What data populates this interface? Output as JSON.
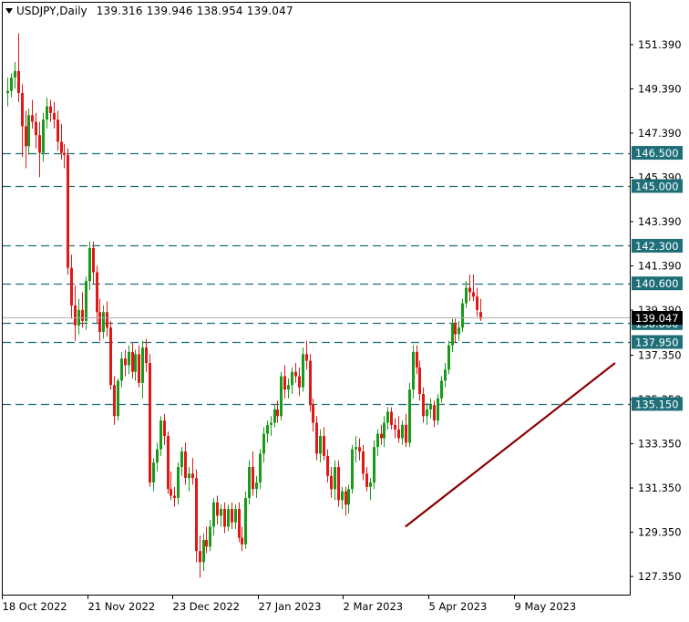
{
  "header": {
    "symbol": "USDJPY,Daily",
    "ohlc": "139.316 139.946 138.954 139.047",
    "menu_icon": "triangle-down-icon"
  },
  "chart_data": {
    "type": "candlestick",
    "title": "USDJPY,Daily",
    "ylim": [
      126.2,
      152.5
    ],
    "y_ticks": [
      "151.390",
      "149.390",
      "147.390",
      "145.390",
      "143.390",
      "141.390",
      "139.390",
      "137.350",
      "135.350",
      "133.350",
      "131.350",
      "129.350",
      "127.350"
    ],
    "x_ticks": [
      {
        "label": "18 Oct 2022",
        "index": 0
      },
      {
        "label": "21 Nov 2022",
        "index": 24
      },
      {
        "label": "23 Dec 2022",
        "index": 48
      },
      {
        "label": "27 Jan 2023",
        "index": 72
      },
      {
        "label": "2 Mar 2023",
        "index": 96
      },
      {
        "label": "5 Apr 2023",
        "index": 120
      },
      {
        "label": "9 May 2023",
        "index": 144
      }
    ],
    "current_price": "139.047",
    "levels": [
      {
        "price": 146.5,
        "label": "146.500"
      },
      {
        "price": 145.0,
        "label": "145.000"
      },
      {
        "price": 142.3,
        "label": "142.300"
      },
      {
        "price": 140.6,
        "label": "140.600"
      },
      {
        "price": 138.8,
        "label": "138.800"
      },
      {
        "price": 137.95,
        "label": "137.950"
      },
      {
        "price": 135.15,
        "label": "135.150"
      }
    ],
    "trendline": {
      "from": {
        "index": 112,
        "price": 129.6
      },
      "to": {
        "index": 171,
        "price": 137.0
      }
    },
    "colors": {
      "up": "#1a9a1a",
      "down": "#e01818",
      "level": "#1f6f78",
      "level_label_bg": "#1f6f78",
      "trend": "#8b0000",
      "grid": "#000000"
    },
    "candles": [
      [
        149.2,
        149.9,
        148.6,
        149.3
      ],
      [
        149.3,
        150.1,
        149.0,
        149.9
      ],
      [
        149.9,
        150.6,
        149.4,
        150.2
      ],
      [
        150.2,
        151.9,
        148.8,
        149.2
      ],
      [
        149.2,
        149.6,
        146.3,
        147.7
      ],
      [
        147.7,
        148.4,
        145.8,
        146.8
      ],
      [
        146.8,
        148.5,
        146.4,
        148.2
      ],
      [
        148.2,
        148.9,
        147.6,
        147.9
      ],
      [
        147.9,
        148.3,
        146.7,
        147.3
      ],
      [
        147.3,
        147.9,
        145.4,
        146.5
      ],
      [
        146.5,
        148.3,
        146.1,
        148.0
      ],
      [
        148.0,
        149.0,
        147.6,
        148.6
      ],
      [
        148.6,
        148.9,
        147.9,
        148.3
      ],
      [
        148.3,
        148.8,
        147.6,
        148.0
      ],
      [
        148.0,
        148.4,
        146.6,
        147.0
      ],
      [
        147.0,
        147.8,
        146.2,
        146.5
      ],
      [
        146.5,
        146.9,
        145.8,
        146.4
      ],
      [
        146.4,
        146.7,
        141.0,
        141.3
      ],
      [
        141.3,
        141.9,
        139.0,
        139.6
      ],
      [
        139.6,
        140.5,
        138.0,
        138.7
      ],
      [
        138.7,
        139.9,
        138.3,
        139.4
      ],
      [
        139.4,
        140.2,
        138.6,
        138.9
      ],
      [
        138.9,
        140.9,
        138.5,
        140.7
      ],
      [
        140.7,
        142.5,
        140.3,
        142.2
      ],
      [
        142.2,
        142.5,
        140.6,
        141.1
      ],
      [
        141.1,
        141.4,
        138.8,
        139.3
      ],
      [
        139.3,
        139.9,
        138.0,
        138.4
      ],
      [
        138.4,
        139.6,
        138.1,
        139.3
      ],
      [
        139.3,
        139.8,
        138.2,
        138.6
      ],
      [
        138.6,
        138.9,
        135.8,
        136.0
      ],
      [
        136.0,
        136.4,
        134.2,
        134.6
      ],
      [
        134.6,
        136.3,
        134.4,
        136.2
      ],
      [
        136.2,
        137.5,
        135.9,
        137.2
      ],
      [
        137.2,
        137.6,
        136.4,
        136.9
      ],
      [
        136.9,
        137.8,
        136.5,
        137.5
      ],
      [
        137.5,
        137.9,
        136.3,
        136.6
      ],
      [
        136.6,
        137.6,
        136.2,
        137.4
      ],
      [
        137.4,
        137.8,
        135.9,
        136.1
      ],
      [
        136.1,
        138.0,
        135.4,
        137.7
      ],
      [
        137.7,
        138.1,
        136.6,
        137.0
      ],
      [
        137.0,
        137.4,
        131.4,
        131.6
      ],
      [
        131.6,
        132.7,
        131.2,
        132.5
      ],
      [
        132.5,
        133.4,
        132.1,
        133.1
      ],
      [
        133.1,
        134.6,
        132.8,
        134.4
      ],
      [
        134.4,
        134.7,
        133.3,
        133.7
      ],
      [
        133.7,
        133.9,
        131.1,
        131.3
      ],
      [
        131.3,
        132.1,
        130.8,
        131.0
      ],
      [
        131.0,
        131.4,
        130.5,
        130.9
      ],
      [
        130.9,
        132.5,
        130.6,
        132.3
      ],
      [
        132.3,
        133.2,
        131.9,
        133.0
      ],
      [
        133.0,
        133.4,
        131.5,
        131.8
      ],
      [
        131.8,
        132.3,
        131.2,
        132.0
      ],
      [
        132.0,
        132.7,
        131.5,
        131.8
      ],
      [
        131.8,
        132.2,
        128.0,
        128.5
      ],
      [
        128.5,
        129.2,
        127.3,
        128.0
      ],
      [
        128.0,
        129.3,
        127.6,
        129.0
      ],
      [
        129.0,
        129.6,
        128.4,
        128.7
      ],
      [
        128.7,
        129.9,
        128.5,
        129.6
      ],
      [
        129.6,
        130.9,
        129.2,
        130.7
      ],
      [
        130.7,
        131.0,
        129.7,
        130.1
      ],
      [
        130.1,
        130.6,
        129.6,
        130.4
      ],
      [
        130.4,
        130.7,
        129.3,
        129.6
      ],
      [
        129.6,
        130.6,
        129.4,
        130.4
      ],
      [
        130.4,
        130.7,
        129.5,
        129.8
      ],
      [
        129.8,
        130.6,
        129.5,
        130.4
      ],
      [
        130.4,
        130.7,
        128.9,
        129.1
      ],
      [
        129.1,
        129.6,
        128.5,
        128.8
      ],
      [
        128.8,
        131.2,
        128.6,
        130.9
      ],
      [
        130.9,
        132.6,
        130.6,
        132.3
      ],
      [
        132.3,
        133.0,
        131.0,
        131.3
      ],
      [
        131.3,
        131.9,
        130.9,
        131.6
      ],
      [
        131.6,
        133.1,
        131.3,
        132.9
      ],
      [
        132.9,
        134.1,
        132.5,
        133.8
      ],
      [
        133.8,
        134.4,
        133.4,
        134.2
      ],
      [
        134.2,
        134.6,
        133.7,
        134.3
      ],
      [
        134.3,
        135.1,
        134.1,
        134.9
      ],
      [
        134.9,
        135.3,
        134.3,
        134.6
      ],
      [
        134.6,
        136.6,
        134.4,
        136.4
      ],
      [
        136.4,
        136.9,
        135.4,
        135.8
      ],
      [
        135.8,
        136.3,
        135.4,
        136.0
      ],
      [
        136.0,
        136.8,
        135.6,
        136.6
      ],
      [
        136.6,
        137.0,
        136.1,
        136.4
      ],
      [
        136.4,
        136.8,
        135.5,
        135.9
      ],
      [
        135.9,
        137.7,
        135.7,
        137.4
      ],
      [
        137.4,
        138.0,
        136.7,
        137.1
      ],
      [
        137.1,
        137.4,
        134.8,
        135.1
      ],
      [
        135.1,
        135.4,
        133.9,
        134.3
      ],
      [
        134.3,
        134.6,
        132.6,
        132.9
      ],
      [
        132.9,
        134.0,
        132.5,
        133.7
      ],
      [
        133.7,
        134.1,
        132.6,
        132.8
      ],
      [
        132.8,
        133.1,
        131.6,
        131.9
      ],
      [
        131.9,
        132.3,
        130.9,
        131.3
      ],
      [
        131.3,
        132.6,
        130.8,
        132.3
      ],
      [
        132.3,
        132.6,
        130.5,
        130.8
      ],
      [
        130.8,
        131.4,
        130.4,
        131.2
      ],
      [
        131.2,
        131.4,
        130.1,
        130.6
      ],
      [
        130.6,
        131.5,
        130.2,
        131.3
      ],
      [
        131.3,
        133.3,
        131.1,
        133.1
      ],
      [
        133.1,
        133.7,
        132.5,
        133.2
      ],
      [
        133.2,
        133.6,
        132.6,
        133.0
      ],
      [
        133.0,
        133.3,
        131.7,
        132.0
      ],
      [
        132.0,
        132.3,
        131.2,
        131.4
      ],
      [
        131.4,
        131.8,
        130.8,
        131.6
      ],
      [
        131.6,
        133.5,
        131.3,
        133.2
      ],
      [
        133.2,
        134.0,
        132.8,
        133.8
      ],
      [
        133.8,
        134.2,
        133.3,
        133.6
      ],
      [
        133.6,
        134.6,
        133.2,
        134.3
      ],
      [
        134.3,
        135.0,
        134.0,
        134.8
      ],
      [
        134.8,
        135.0,
        134.0,
        134.2
      ],
      [
        134.2,
        134.5,
        133.6,
        134.0
      ],
      [
        134.0,
        134.6,
        133.4,
        133.6
      ],
      [
        133.6,
        134.4,
        133.3,
        134.2
      ],
      [
        134.2,
        134.7,
        133.2,
        133.4
      ],
      [
        133.4,
        136.1,
        133.2,
        135.8
      ],
      [
        135.8,
        137.8,
        135.4,
        137.5
      ],
      [
        137.5,
        137.8,
        136.5,
        136.8
      ],
      [
        136.8,
        137.1,
        135.3,
        135.6
      ],
      [
        135.6,
        135.9,
        134.3,
        134.6
      ],
      [
        134.6,
        135.2,
        134.2,
        134.9
      ],
      [
        134.9,
        135.4,
        134.5,
        135.1
      ],
      [
        135.1,
        135.3,
        134.1,
        134.4
      ],
      [
        134.4,
        135.6,
        134.2,
        135.4
      ],
      [
        135.4,
        136.4,
        135.2,
        136.2
      ],
      [
        136.2,
        137.0,
        135.9,
        136.7
      ],
      [
        136.7,
        138.0,
        136.5,
        137.8
      ],
      [
        137.8,
        139.0,
        137.5,
        138.8
      ],
      [
        138.8,
        139.0,
        137.9,
        138.3
      ],
      [
        138.3,
        138.9,
        138.0,
        138.6
      ],
      [
        138.6,
        139.9,
        138.4,
        139.7
      ],
      [
        139.7,
        140.7,
        139.5,
        140.4
      ],
      [
        140.4,
        141.0,
        139.8,
        140.2
      ],
      [
        140.2,
        141.0,
        139.8,
        140.0
      ],
      [
        140.0,
        140.4,
        139.1,
        139.4
      ],
      [
        139.3,
        139.9,
        138.9,
        139.0
      ]
    ]
  }
}
